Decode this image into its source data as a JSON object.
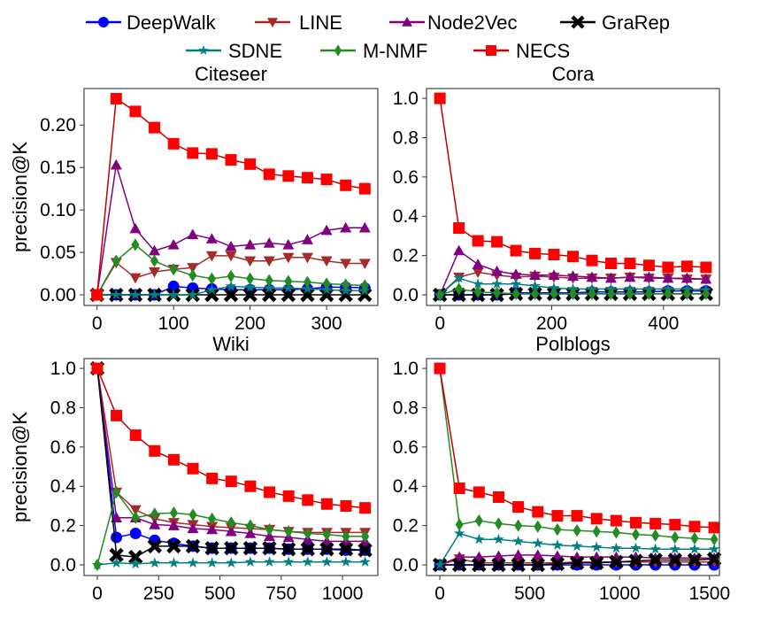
{
  "chart_data": {
    "type": "line",
    "legend": {
      "placement": "top-center",
      "entries": [
        "DeepWalk",
        "LINE",
        "Node2Vec",
        "GraRep",
        "SDNE",
        "M-NMF",
        "NECS"
      ]
    },
    "styles": {
      "DeepWalk": {
        "color": "#0000ff",
        "marker": "circle"
      },
      "LINE": {
        "color": "#a52a2a",
        "marker": "triangle-down"
      },
      "Node2Vec": {
        "color": "#800080",
        "marker": "triangle-up"
      },
      "GraRep": {
        "color": "#000000",
        "marker": "x-filled"
      },
      "SDNE": {
        "color": "#008080",
        "marker": "star"
      },
      "M-NMF": {
        "color": "#228b22",
        "marker": "diamond"
      },
      "NECS": {
        "color": "#ff0000",
        "line_color": "#c00000",
        "marker": "square"
      }
    },
    "subplots": [
      {
        "title": "Citeseer",
        "ylabel": "precision@K",
        "xlabel": "",
        "xlim": [
          -17,
          367
        ],
        "ylim": [
          -0.0125,
          0.243
        ],
        "xticks": [
          0,
          100,
          200,
          300
        ],
        "xtick_labels": [
          "0",
          "100",
          "200",
          "300"
        ],
        "yticks": [
          0,
          0.05,
          0.1,
          0.15,
          0.2
        ],
        "ytick_labels": [
          "0.00",
          "0.05",
          "0.10",
          "0.15",
          "0.20"
        ],
        "x": [
          0,
          25,
          50,
          75,
          100,
          125,
          150,
          175,
          200,
          225,
          250,
          275,
          300,
          325,
          350
        ],
        "series": [
          {
            "name": "DeepWalk",
            "values": [
              0,
              0,
              0,
              0,
              0.01,
              0.008,
              0.007,
              0.006,
              0.006,
              0.006,
              0.006,
              0.007,
              0.009,
              0.009,
              0.008
            ]
          },
          {
            "name": "LINE",
            "values": [
              0,
              0.038,
              0.02,
              0.027,
              0.03,
              0.032,
              0.046,
              0.046,
              0.04,
              0.04,
              0.044,
              0.044,
              0.04,
              0.037,
              0.037
            ]
          },
          {
            "name": "Node2Vec",
            "values": [
              0,
              0.153,
              0.078,
              0.052,
              0.059,
              0.071,
              0.066,
              0.057,
              0.059,
              0.061,
              0.059,
              0.065,
              0.076,
              0.079,
              0.079
            ]
          },
          {
            "name": "GraRep",
            "values": [
              0,
              0,
              0,
              0,
              0,
              0,
              0,
              0,
              0,
              0,
              0,
              0,
              0,
              0,
              0
            ]
          },
          {
            "name": "SDNE",
            "values": [
              0,
              0,
              0,
              0,
              0,
              0,
              0.006,
              0.01,
              0.009,
              0.008,
              0.008,
              0.007,
              0.006,
              0.005,
              0.005
            ]
          },
          {
            "name": "M-NMF",
            "values": [
              0,
              0.04,
              0.059,
              0.04,
              0.03,
              0.023,
              0.019,
              0.022,
              0.019,
              0.017,
              0.016,
              0.015,
              0.013,
              0.012,
              0.011
            ]
          },
          {
            "name": "NECS",
            "values": [
              0,
              0.231,
              0.216,
              0.197,
              0.178,
              0.167,
              0.166,
              0.159,
              0.154,
              0.142,
              0.14,
              0.138,
              0.136,
              0.129,
              0.125
            ]
          }
        ]
      },
      {
        "title": "Cora",
        "ylabel": "",
        "xlabel": "",
        "xlim": [
          -24,
          500
        ],
        "ylim": [
          -0.054,
          1.05
        ],
        "xticks": [
          0,
          200,
          400
        ],
        "xtick_labels": [
          "0",
          "200",
          "400"
        ],
        "yticks": [
          0,
          0.2,
          0.4,
          0.6,
          0.8,
          1.0
        ],
        "ytick_labels": [
          "0.0",
          "0.2",
          "0.4",
          "0.6",
          "0.8",
          "1.0"
        ],
        "x": [
          0,
          34,
          68,
          102,
          136,
          170,
          204,
          238,
          272,
          306,
          340,
          374,
          408,
          442,
          476
        ],
        "series": [
          {
            "name": "DeepWalk",
            "values": [
              0,
              0,
              0,
              0,
              0.01,
              0.01,
              0.01,
              0.01,
              0.015,
              0.015,
              0.015,
              0.015,
              0.02,
              0.02,
              0.02
            ]
          },
          {
            "name": "LINE",
            "values": [
              0,
              0.09,
              0.115,
              0.1,
              0.09,
              0.095,
              0.09,
              0.085,
              0.085,
              0.085,
              0.09,
              0.085,
              0.085,
              0.08,
              0.08
            ]
          },
          {
            "name": "Node2Vec",
            "values": [
              0,
              0.225,
              0.155,
              0.12,
              0.105,
              0.1,
              0.1,
              0.095,
              0.09,
              0.085,
              0.09,
              0.09,
              0.085,
              0.085,
              0.08
            ]
          },
          {
            "name": "GraRep",
            "values": [
              0,
              0,
              0,
              0,
              0.005,
              0.005,
              0.005,
              0.005,
              0.005,
              0.005,
              0.005,
              0.005,
              0.005,
              0.005,
              0.005
            ]
          },
          {
            "name": "SDNE",
            "values": [
              0,
              0.085,
              0.055,
              0.055,
              0.055,
              0.045,
              0.035,
              0.03,
              0.03,
              0.03,
              0.03,
              0.03,
              0.03,
              0.03,
              0.025
            ]
          },
          {
            "name": "M-NMF",
            "values": [
              0,
              0.03,
              0.015,
              0.01,
              0.005,
              0.005,
              0.005,
              0.005,
              0.005,
              0.005,
              0.005,
              0.005,
              0.005,
              0.005,
              0.005
            ]
          },
          {
            "name": "NECS",
            "values": [
              1.0,
              0.34,
              0.275,
              0.27,
              0.225,
              0.21,
              0.205,
              0.195,
              0.175,
              0.16,
              0.16,
              0.15,
              0.14,
              0.145,
              0.14
            ]
          }
        ]
      },
      {
        "title": "Wiki",
        "ylabel": "precision@K",
        "xlabel": "",
        "xlim": [
          -54,
          1144
        ],
        "ylim": [
          -0.054,
          1.05
        ],
        "xticks": [
          0,
          250,
          500,
          750,
          1000
        ],
        "xtick_labels": [
          "0",
          "250",
          "500",
          "750",
          "1000"
        ],
        "yticks": [
          0,
          0.2,
          0.4,
          0.6,
          0.8,
          1.0
        ],
        "ytick_labels": [
          "0.0",
          "0.2",
          "0.4",
          "0.6",
          "0.8",
          "1.0"
        ],
        "x": [
          0,
          78,
          156,
          234,
          312,
          390,
          468,
          546,
          624,
          702,
          780,
          858,
          936,
          1014,
          1092
        ],
        "series": [
          {
            "name": "DeepWalk",
            "values": [
              1,
              0.14,
              0.16,
              0.125,
              0.11,
              0.095,
              0.085,
              0.085,
              0.085,
              0.085,
              0.08,
              0.08,
              0.08,
              0.075,
              0.075
            ]
          },
          {
            "name": "LINE",
            "values": [
              1,
              0.37,
              0.28,
              0.235,
              0.215,
              0.205,
              0.195,
              0.19,
              0.185,
              0.18,
              0.17,
              0.165,
              0.165,
              0.165,
              0.165
            ]
          },
          {
            "name": "Node2Vec",
            "values": [
              1,
              0.24,
              0.24,
              0.205,
              0.2,
              0.185,
              0.18,
              0.17,
              0.16,
              0.145,
              0.14,
              0.13,
              0.12,
              0.12,
              0.12
            ]
          },
          {
            "name": "GraRep",
            "values": [
              1,
              0.05,
              0.04,
              0.095,
              0.095,
              0.095,
              0.085,
              0.085,
              0.085,
              0.085,
              0.08,
              0.08,
              0.08,
              0.08,
              0.075
            ]
          },
          {
            "name": "SDNE",
            "values": [
              0,
              0.01,
              0.005,
              0.01,
              0.01,
              0.01,
              0.01,
              0.01,
              0.015,
              0.015,
              0.015,
              0.015,
              0.015,
              0.015,
              0.015
            ]
          },
          {
            "name": "M-NMF",
            "values": [
              0,
              0.37,
              0.24,
              0.26,
              0.265,
              0.255,
              0.235,
              0.215,
              0.2,
              0.18,
              0.17,
              0.16,
              0.155,
              0.145,
              0.145
            ]
          },
          {
            "name": "NECS",
            "values": [
              1,
              0.76,
              0.66,
              0.58,
              0.535,
              0.49,
              0.44,
              0.425,
              0.4,
              0.37,
              0.35,
              0.33,
              0.31,
              0.3,
              0.29
            ]
          }
        ]
      },
      {
        "title": "Polblogs",
        "ylabel": "",
        "xlabel": "",
        "xlim": [
          -74,
          1555
        ],
        "ylim": [
          -0.054,
          1.05
        ],
        "xticks": [
          0,
          500,
          1000,
          1500
        ],
        "xtick_labels": [
          "0",
          "500",
          "1000",
          "1500"
        ],
        "yticks": [
          0,
          0.2,
          0.4,
          0.6,
          0.8,
          1.0
        ],
        "ytick_labels": [
          "0.0",
          "0.2",
          "0.4",
          "0.6",
          "0.8",
          "1.0"
        ],
        "x": [
          0,
          109,
          218,
          327,
          436,
          545,
          654,
          763,
          872,
          981,
          1090,
          1199,
          1308,
          1417,
          1526
        ],
        "series": [
          {
            "name": "DeepWalk",
            "values": [
              0,
              0,
              0,
              0,
              0,
              0,
              0,
              0,
              0,
              0,
              0,
              0,
              0,
              0,
              0
            ]
          },
          {
            "name": "LINE",
            "values": [
              0,
              0.03,
              0.01,
              0.01,
              0.01,
              0.01,
              0.01,
              0.015,
              0.015,
              0.015,
              0.015,
              0.015,
              0.015,
              0.015,
              0.015
            ]
          },
          {
            "name": "Node2Vec",
            "values": [
              0,
              0.04,
              0.04,
              0.045,
              0.05,
              0.05,
              0.045,
              0.04,
              0.04,
              0.04,
              0.04,
              0.035,
              0.035,
              0.035,
              0.035
            ]
          },
          {
            "name": "GraRep",
            "values": [
              0,
              0,
              0,
              0,
              0,
              0,
              0.005,
              0.01,
              0.01,
              0.015,
              0.02,
              0.025,
              0.025,
              0.025,
              0.03
            ]
          },
          {
            "name": "SDNE",
            "values": [
              0,
              0.16,
              0.13,
              0.13,
              0.12,
              0.11,
              0.1,
              0.095,
              0.09,
              0.085,
              0.085,
              0.08,
              0.08,
              0.08,
              0.08
            ]
          },
          {
            "name": "M-NMF",
            "values": [
              1,
              0.205,
              0.225,
              0.21,
              0.2,
              0.195,
              0.18,
              0.175,
              0.17,
              0.165,
              0.155,
              0.15,
              0.14,
              0.135,
              0.13
            ]
          },
          {
            "name": "NECS",
            "values": [
              1,
              0.39,
              0.37,
              0.345,
              0.295,
              0.27,
              0.25,
              0.25,
              0.235,
              0.225,
              0.215,
              0.21,
              0.205,
              0.195,
              0.19
            ]
          }
        ]
      }
    ]
  }
}
